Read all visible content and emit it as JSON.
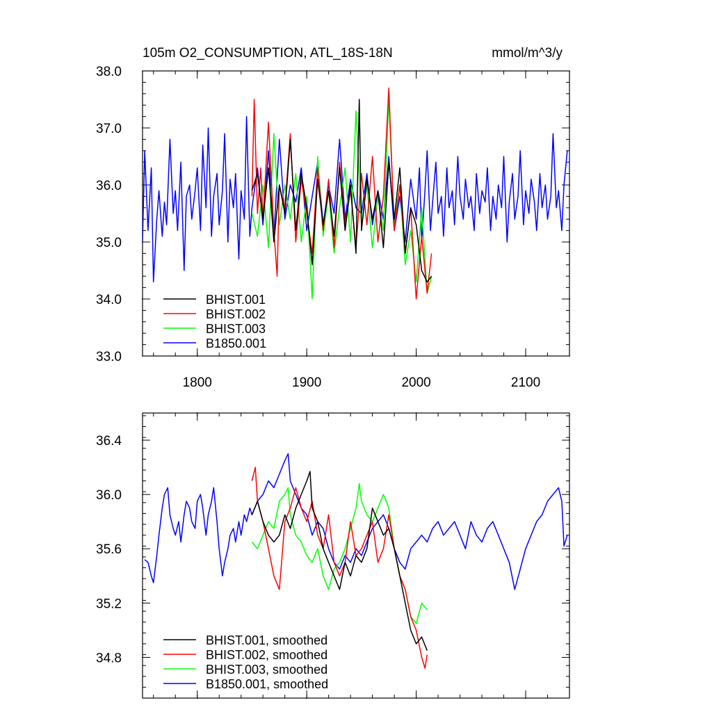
{
  "chart_data": [
    {
      "type": "line",
      "title": "105m O2_CONSUMPTION, ATL_18S-18N",
      "units": "mmol/m^3/y",
      "xlim": [
        1750,
        2140
      ],
      "ylim": [
        33.0,
        38.0
      ],
      "xticks": [
        1800,
        1900,
        2000,
        2100
      ],
      "xtick_labels": [
        "1800",
        "1900",
        "2000",
        "2100"
      ],
      "yticks": [
        33.0,
        34.0,
        35.0,
        36.0,
        37.0,
        38.0
      ],
      "ytick_labels": [
        "33.0",
        "34.0",
        "35.0",
        "36.0",
        "37.0",
        "38.0"
      ],
      "legend_position": "bottom-left",
      "series": [
        {
          "name": "BHIST.001",
          "color": "#000000",
          "x": [
            1850,
            1855,
            1860,
            1865,
            1870,
            1875,
            1880,
            1885,
            1890,
            1895,
            1900,
            1905,
            1910,
            1915,
            1920,
            1925,
            1930,
            1935,
            1940,
            1945,
            1948,
            1950,
            1955,
            1960,
            1965,
            1970,
            1975,
            1980,
            1985,
            1990,
            1995,
            2000,
            2005,
            2010,
            2014
          ],
          "y": [
            35.9,
            36.2,
            35.4,
            36.3,
            35.0,
            36.0,
            35.5,
            36.8,
            35.2,
            36.2,
            35.6,
            34.6,
            36.1,
            35.3,
            35.9,
            35.1,
            36.3,
            35.2,
            36.0,
            34.8,
            37.5,
            35.2,
            36.1,
            35.4,
            35.9,
            34.9,
            36.4,
            35.4,
            36.3,
            34.8,
            35.6,
            35.3,
            34.5,
            34.3,
            34.4
          ]
        },
        {
          "name": "BHIST.002",
          "color": "#ff0000",
          "x": [
            1850,
            1852,
            1855,
            1858,
            1860,
            1865,
            1870,
            1873,
            1875,
            1880,
            1885,
            1890,
            1895,
            1900,
            1905,
            1910,
            1915,
            1920,
            1925,
            1930,
            1935,
            1940,
            1945,
            1950,
            1955,
            1960,
            1965,
            1970,
            1975,
            1980,
            1985,
            1990,
            1995,
            2000,
            2005,
            2010,
            2014
          ],
          "y": [
            35.8,
            37.5,
            35.5,
            36.3,
            35.4,
            37.1,
            35.2,
            34.4,
            36.0,
            35.6,
            36.9,
            35.0,
            36.1,
            35.5,
            34.8,
            36.3,
            35.2,
            36.1,
            34.9,
            36.4,
            35.3,
            35.9,
            34.9,
            36.2,
            35.3,
            36.5,
            35.0,
            35.8,
            37.7,
            35.2,
            36.0,
            34.8,
            35.6,
            34.0,
            35.1,
            34.1,
            34.8
          ]
        },
        {
          "name": "BHIST.003",
          "color": "#00ff00",
          "x": [
            1850,
            1855,
            1860,
            1865,
            1870,
            1875,
            1880,
            1885,
            1890,
            1895,
            1900,
            1905,
            1910,
            1915,
            1920,
            1925,
            1930,
            1935,
            1940,
            1945,
            1950,
            1955,
            1960,
            1965,
            1970,
            1975,
            1980,
            1985,
            1990,
            1995,
            2000,
            2005,
            2010,
            2014
          ],
          "y": [
            35.5,
            35.1,
            36.0,
            34.9,
            36.9,
            35.3,
            36.0,
            35.4,
            36.2,
            35.0,
            35.8,
            34.0,
            36.5,
            35.1,
            35.9,
            34.8,
            35.6,
            36.3,
            35.0,
            37.3,
            35.3,
            36.0,
            34.9,
            35.8,
            35.2,
            37.5,
            35.3,
            36.0,
            34.6,
            35.2,
            34.3,
            35.6,
            34.1,
            34.4
          ]
        },
        {
          "name": "B1850.001",
          "color": "#0000ff",
          "x": [
            1750,
            1752,
            1755,
            1758,
            1760,
            1763,
            1765,
            1768,
            1770,
            1772,
            1775,
            1778,
            1780,
            1782,
            1785,
            1788,
            1790,
            1793,
            1795,
            1798,
            1800,
            1803,
            1805,
            1808,
            1810,
            1813,
            1815,
            1818,
            1820,
            1823,
            1825,
            1828,
            1830,
            1833,
            1835,
            1838,
            1840,
            1843,
            1845,
            1848,
            1850,
            1855,
            1860,
            1865,
            1870,
            1875,
            1880,
            1885,
            1890,
            1895,
            1900,
            1905,
            1910,
            1915,
            1920,
            1925,
            1930,
            1935,
            1940,
            1945,
            1950,
            1955,
            1960,
            1965,
            1970,
            1975,
            1980,
            1985,
            1990,
            1995,
            2000,
            2003,
            2005,
            2008,
            2010,
            2013,
            2015,
            2018,
            2020,
            2023,
            2025,
            2028,
            2030,
            2033,
            2035,
            2038,
            2040,
            2043,
            2045,
            2048,
            2050,
            2053,
            2055,
            2058,
            2060,
            2063,
            2065,
            2068,
            2070,
            2073,
            2075,
            2078,
            2080,
            2083,
            2085,
            2088,
            2090,
            2093,
            2095,
            2098,
            2100,
            2103,
            2105,
            2108,
            2110,
            2113,
            2115,
            2118,
            2120,
            2123,
            2125,
            2128,
            2130,
            2133,
            2135,
            2138
          ],
          "y": [
            35.0,
            36.6,
            35.2,
            36.3,
            34.3,
            35.4,
            35.9,
            35.1,
            35.7,
            35.3,
            36.8,
            35.5,
            35.9,
            35.2,
            36.4,
            34.5,
            35.8,
            36.0,
            35.4,
            35.9,
            36.3,
            35.2,
            36.7,
            35.6,
            37.0,
            35.1,
            35.8,
            36.2,
            35.3,
            35.9,
            36.9,
            35.0,
            36.1,
            35.6,
            36.2,
            34.7,
            35.9,
            35.4,
            37.2,
            35.1,
            35.6,
            36.3,
            35.3,
            36.6,
            35.1,
            36.8,
            35.4,
            36.0,
            35.7,
            36.3,
            35.2,
            35.8,
            36.4,
            35.3,
            36.0,
            35.5,
            36.8,
            35.4,
            36.1,
            35.6,
            35.5,
            36.2,
            35.3,
            35.9,
            35.4,
            36.5,
            35.2,
            35.8,
            35.0,
            36.1,
            35.4,
            36.3,
            35.0,
            35.9,
            36.6,
            35.2,
            35.7,
            36.4,
            35.5,
            35.8,
            35.1,
            36.3,
            35.6,
            35.9,
            35.3,
            36.5,
            35.8,
            35.4,
            36.1,
            35.6,
            35.8,
            35.2,
            36.2,
            35.5,
            35.9,
            35.7,
            36.3,
            35.2,
            35.8,
            35.4,
            36.0,
            35.6,
            36.5,
            35.0,
            35.7,
            36.2,
            35.4,
            35.8,
            36.6,
            35.3,
            35.9,
            35.5,
            36.1,
            35.7,
            35.2,
            36.2,
            35.6,
            36.0,
            35.4,
            35.8,
            36.9,
            35.6,
            35.9,
            35.2,
            36.0,
            36.6
          ]
        }
      ]
    },
    {
      "type": "line",
      "xlim": [
        1750,
        2140
      ],
      "ylim": [
        34.5,
        36.6
      ],
      "xticks": [
        1800,
        1900,
        2000,
        2100
      ],
      "xtick_labels": [],
      "yticks": [
        34.8,
        35.2,
        35.6,
        36.0,
        36.4
      ],
      "ytick_labels": [
        "34.8",
        "35.2",
        "35.6",
        "36.0",
        "36.4"
      ],
      "legend_position": "bottom-left",
      "series": [
        {
          "name": "BHIST.001, smoothed",
          "color": "#000000",
          "x": [
            1850,
            1855,
            1860,
            1865,
            1870,
            1875,
            1880,
            1885,
            1890,
            1895,
            1900,
            1903,
            1905,
            1910,
            1915,
            1920,
            1925,
            1930,
            1935,
            1940,
            1945,
            1950,
            1955,
            1960,
            1965,
            1970,
            1975,
            1980,
            1985,
            1990,
            1995,
            2000,
            2005,
            2010
          ],
          "y": [
            35.85,
            35.95,
            35.8,
            35.7,
            35.65,
            35.7,
            35.85,
            35.75,
            35.9,
            36.0,
            36.1,
            36.17,
            35.9,
            35.8,
            35.6,
            35.5,
            35.4,
            35.3,
            35.5,
            35.4,
            35.55,
            35.5,
            35.6,
            35.9,
            35.8,
            35.7,
            35.75,
            35.6,
            35.4,
            35.2,
            35.0,
            34.9,
            34.95,
            34.85
          ]
        },
        {
          "name": "BHIST.002, smoothed",
          "color": "#ff0000",
          "x": [
            1850,
            1853,
            1855,
            1860,
            1865,
            1870,
            1875,
            1880,
            1885,
            1890,
            1895,
            1900,
            1905,
            1910,
            1915,
            1920,
            1925,
            1930,
            1935,
            1940,
            1945,
            1950,
            1955,
            1960,
            1965,
            1970,
            1975,
            1980,
            1985,
            1990,
            1995,
            2000,
            2005,
            2008,
            2010
          ],
          "y": [
            36.1,
            36.2,
            35.95,
            35.8,
            35.6,
            35.4,
            35.3,
            35.8,
            35.9,
            36.05,
            35.9,
            35.8,
            35.95,
            35.7,
            35.6,
            35.85,
            35.5,
            35.4,
            35.5,
            35.8,
            35.55,
            35.6,
            35.7,
            35.8,
            35.5,
            35.6,
            35.85,
            35.6,
            35.4,
            35.3,
            35.1,
            35.0,
            34.8,
            34.72,
            34.82
          ]
        },
        {
          "name": "BHIST.003, smoothed",
          "color": "#00ff00",
          "x": [
            1850,
            1855,
            1860,
            1865,
            1870,
            1875,
            1880,
            1883,
            1885,
            1890,
            1895,
            1900,
            1905,
            1910,
            1915,
            1920,
            1925,
            1930,
            1935,
            1940,
            1945,
            1948,
            1950,
            1955,
            1960,
            1965,
            1970,
            1975,
            1980,
            1985,
            1990,
            1995,
            2000,
            2005,
            2010
          ],
          "y": [
            35.65,
            35.6,
            35.7,
            35.8,
            35.75,
            35.95,
            36.0,
            36.05,
            35.85,
            35.7,
            35.65,
            35.55,
            35.5,
            35.6,
            35.4,
            35.3,
            35.45,
            35.5,
            35.6,
            35.75,
            35.9,
            36.08,
            35.95,
            35.85,
            35.8,
            35.9,
            36.0,
            35.9,
            35.6,
            35.4,
            35.3,
            35.1,
            35.05,
            35.2,
            35.15
          ]
        },
        {
          "name": "B1850.001, smoothed",
          "color": "#0000ff",
          "x": [
            1752,
            1755,
            1758,
            1760,
            1763,
            1765,
            1768,
            1770,
            1773,
            1775,
            1778,
            1780,
            1783,
            1785,
            1788,
            1790,
            1793,
            1795,
            1798,
            1800,
            1803,
            1805,
            1808,
            1810,
            1813,
            1815,
            1818,
            1820,
            1823,
            1825,
            1828,
            1830,
            1833,
            1835,
            1838,
            1840,
            1843,
            1845,
            1848,
            1850,
            1855,
            1860,
            1865,
            1870,
            1875,
            1880,
            1883,
            1885,
            1890,
            1895,
            1900,
            1905,
            1910,
            1915,
            1920,
            1925,
            1930,
            1935,
            1940,
            1945,
            1950,
            1955,
            1960,
            1965,
            1970,
            1975,
            1980,
            1985,
            1990,
            1995,
            2000,
            2005,
            2010,
            2015,
            2020,
            2025,
            2030,
            2035,
            2040,
            2045,
            2050,
            2055,
            2060,
            2065,
            2070,
            2075,
            2080,
            2085,
            2090,
            2095,
            2100,
            2105,
            2110,
            2115,
            2120,
            2125,
            2130,
            2133,
            2135,
            2138
          ],
          "y": [
            35.52,
            35.5,
            35.4,
            35.35,
            35.55,
            35.7,
            35.9,
            36.0,
            36.05,
            35.85,
            35.75,
            35.7,
            35.8,
            35.65,
            35.85,
            35.95,
            35.9,
            35.8,
            35.75,
            35.95,
            36.0,
            35.9,
            35.7,
            35.85,
            35.95,
            36.05,
            35.8,
            35.6,
            35.4,
            35.5,
            35.6,
            35.7,
            35.75,
            35.65,
            35.8,
            35.7,
            35.85,
            35.8,
            35.9,
            35.85,
            35.95,
            36.0,
            36.1,
            36.05,
            36.15,
            36.25,
            36.3,
            36.1,
            36.0,
            35.9,
            35.85,
            35.7,
            35.8,
            35.75,
            35.6,
            35.5,
            35.45,
            35.55,
            35.5,
            35.6,
            35.55,
            35.65,
            35.75,
            35.8,
            35.85,
            35.75,
            35.6,
            35.5,
            35.45,
            35.6,
            35.65,
            35.7,
            35.65,
            35.75,
            35.8,
            35.7,
            35.75,
            35.8,
            35.7,
            35.6,
            35.8,
            35.7,
            35.65,
            35.75,
            35.8,
            35.7,
            35.6,
            35.5,
            35.3,
            35.45,
            35.6,
            35.7,
            35.8,
            35.85,
            35.95,
            36.0,
            36.05,
            35.95,
            35.62,
            35.7
          ]
        }
      ]
    }
  ]
}
